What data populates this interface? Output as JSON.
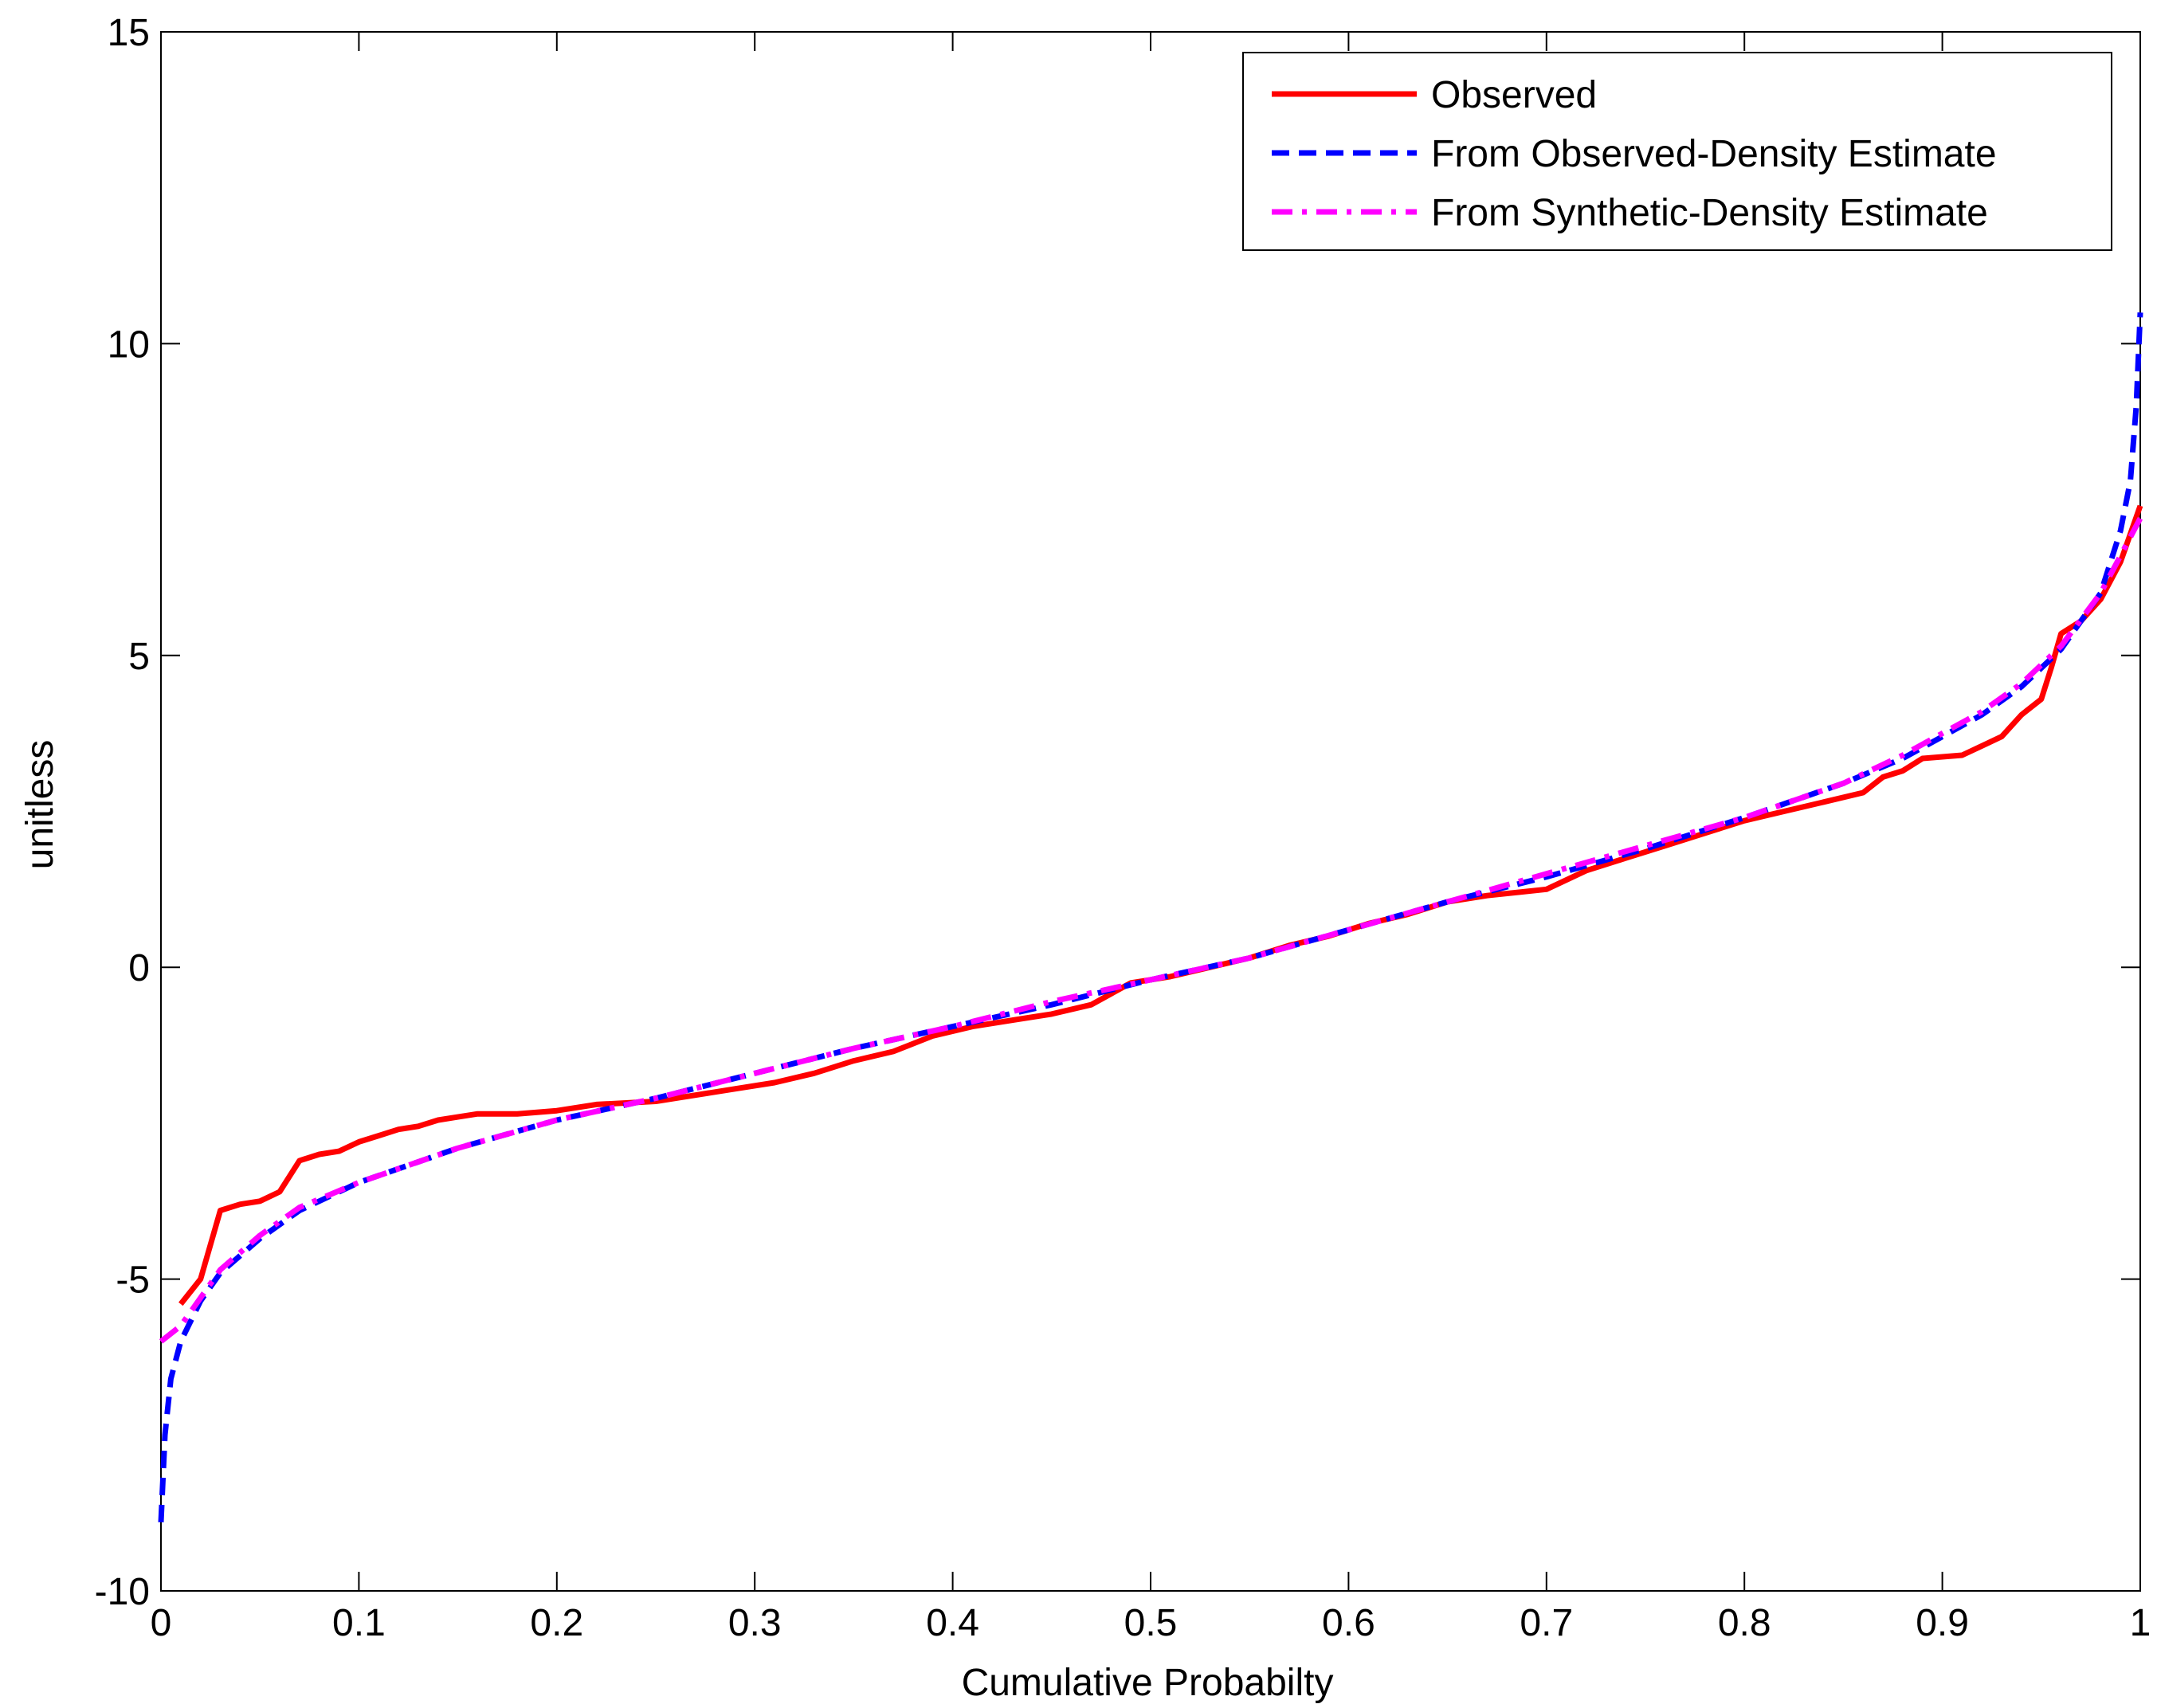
{
  "chart_data": {
    "type": "line",
    "title": "",
    "xlabel": "Cumulative Probabilty",
    "ylabel": "unitless",
    "xlim": [
      0,
      1
    ],
    "ylim": [
      -10,
      15
    ],
    "xticks": [
      0,
      0.1,
      0.2,
      0.3,
      0.4,
      0.5,
      0.6,
      0.7,
      0.8,
      0.9,
      1
    ],
    "xtick_labels": [
      "0",
      "0.1",
      "0.2",
      "0.3",
      "0.4",
      "0.5",
      "0.6",
      "0.7",
      "0.8",
      "0.9",
      "1"
    ],
    "yticks": [
      -10,
      -5,
      0,
      5,
      10,
      15
    ],
    "ytick_labels": [
      "-10",
      "-5",
      "0",
      "5",
      "10",
      "15"
    ],
    "grid": false,
    "legend_position": "top-right",
    "series": [
      {
        "name": "Observed",
        "color": "#ff0000",
        "style": "solid",
        "points": [
          [
            0.01,
            -5.4
          ],
          [
            0.02,
            -5.0
          ],
          [
            0.03,
            -3.9
          ],
          [
            0.04,
            -3.8
          ],
          [
            0.05,
            -3.75
          ],
          [
            0.06,
            -3.6
          ],
          [
            0.07,
            -3.1
          ],
          [
            0.08,
            -3.0
          ],
          [
            0.09,
            -2.95
          ],
          [
            0.1,
            -2.8
          ],
          [
            0.11,
            -2.7
          ],
          [
            0.12,
            -2.6
          ],
          [
            0.13,
            -2.55
          ],
          [
            0.14,
            -2.45
          ],
          [
            0.15,
            -2.4
          ],
          [
            0.16,
            -2.35
          ],
          [
            0.18,
            -2.35
          ],
          [
            0.2,
            -2.3
          ],
          [
            0.22,
            -2.2
          ],
          [
            0.25,
            -2.15
          ],
          [
            0.27,
            -2.05
          ],
          [
            0.29,
            -1.95
          ],
          [
            0.31,
            -1.85
          ],
          [
            0.33,
            -1.7
          ],
          [
            0.35,
            -1.5
          ],
          [
            0.37,
            -1.35
          ],
          [
            0.39,
            -1.1
          ],
          [
            0.41,
            -0.95
          ],
          [
            0.43,
            -0.85
          ],
          [
            0.45,
            -0.75
          ],
          [
            0.47,
            -0.6
          ],
          [
            0.49,
            -0.25
          ],
          [
            0.51,
            -0.15
          ],
          [
            0.53,
            0.0
          ],
          [
            0.55,
            0.15
          ],
          [
            0.57,
            0.35
          ],
          [
            0.59,
            0.5
          ],
          [
            0.61,
            0.7
          ],
          [
            0.63,
            0.85
          ],
          [
            0.65,
            1.05
          ],
          [
            0.67,
            1.15
          ],
          [
            0.7,
            1.25
          ],
          [
            0.72,
            1.55
          ],
          [
            0.74,
            1.75
          ],
          [
            0.76,
            1.95
          ],
          [
            0.78,
            2.15
          ],
          [
            0.8,
            2.35
          ],
          [
            0.82,
            2.5
          ],
          [
            0.84,
            2.65
          ],
          [
            0.86,
            2.8
          ],
          [
            0.87,
            3.05
          ],
          [
            0.88,
            3.15
          ],
          [
            0.89,
            3.35
          ],
          [
            0.91,
            3.4
          ],
          [
            0.92,
            3.55
          ],
          [
            0.93,
            3.7
          ],
          [
            0.94,
            4.05
          ],
          [
            0.95,
            4.3
          ],
          [
            0.955,
            4.8
          ],
          [
            0.96,
            5.35
          ],
          [
            0.97,
            5.55
          ],
          [
            0.98,
            5.9
          ],
          [
            0.99,
            6.5
          ],
          [
            1.0,
            7.4
          ]
        ]
      },
      {
        "name": "From Observed-Density Estimate",
        "color": "#0000ff",
        "style": "dashed",
        "points": [
          [
            0.0,
            -8.9
          ],
          [
            0.002,
            -7.5
          ],
          [
            0.005,
            -6.6
          ],
          [
            0.01,
            -6.0
          ],
          [
            0.02,
            -5.35
          ],
          [
            0.03,
            -4.9
          ],
          [
            0.05,
            -4.35
          ],
          [
            0.07,
            -3.9
          ],
          [
            0.1,
            -3.45
          ],
          [
            0.15,
            -2.9
          ],
          [
            0.2,
            -2.45
          ],
          [
            0.25,
            -2.1
          ],
          [
            0.3,
            -1.7
          ],
          [
            0.35,
            -1.3
          ],
          [
            0.4,
            -0.95
          ],
          [
            0.45,
            -0.6
          ],
          [
            0.5,
            -0.2
          ],
          [
            0.55,
            0.15
          ],
          [
            0.6,
            0.6
          ],
          [
            0.65,
            1.05
          ],
          [
            0.7,
            1.45
          ],
          [
            0.75,
            1.9
          ],
          [
            0.8,
            2.4
          ],
          [
            0.85,
            2.95
          ],
          [
            0.88,
            3.35
          ],
          [
            0.9,
            3.7
          ],
          [
            0.92,
            4.05
          ],
          [
            0.94,
            4.5
          ],
          [
            0.96,
            5.1
          ],
          [
            0.98,
            6.0
          ],
          [
            0.99,
            7.0
          ],
          [
            0.995,
            7.8
          ],
          [
            0.998,
            9.0
          ],
          [
            1.0,
            10.5
          ]
        ]
      },
      {
        "name": "From Synthetic-Density Estimate",
        "color": "#ff00ff",
        "style": "dashdot",
        "points": [
          [
            0.0,
            -6.0
          ],
          [
            0.01,
            -5.75
          ],
          [
            0.02,
            -5.3
          ],
          [
            0.03,
            -4.85
          ],
          [
            0.05,
            -4.3
          ],
          [
            0.07,
            -3.85
          ],
          [
            0.1,
            -3.45
          ],
          [
            0.15,
            -2.9
          ],
          [
            0.2,
            -2.45
          ],
          [
            0.25,
            -2.1
          ],
          [
            0.3,
            -1.7
          ],
          [
            0.35,
            -1.3
          ],
          [
            0.4,
            -0.95
          ],
          [
            0.45,
            -0.55
          ],
          [
            0.5,
            -0.2
          ],
          [
            0.55,
            0.15
          ],
          [
            0.6,
            0.6
          ],
          [
            0.65,
            1.05
          ],
          [
            0.7,
            1.5
          ],
          [
            0.75,
            1.95
          ],
          [
            0.8,
            2.4
          ],
          [
            0.85,
            2.95
          ],
          [
            0.88,
            3.4
          ],
          [
            0.9,
            3.75
          ],
          [
            0.92,
            4.1
          ],
          [
            0.94,
            4.55
          ],
          [
            0.96,
            5.15
          ],
          [
            0.98,
            6.0
          ],
          [
            0.99,
            6.6
          ],
          [
            1.0,
            7.2
          ]
        ]
      }
    ]
  }
}
